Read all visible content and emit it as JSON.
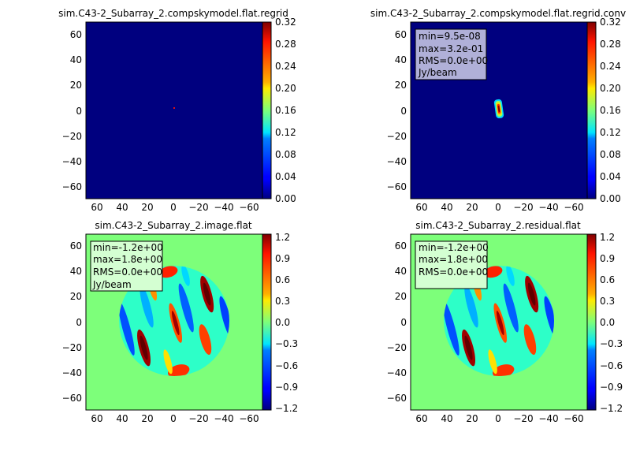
{
  "panels": [
    {
      "title": "sim.C43-2_Subarray_2.compskymodel.flat.regrid",
      "kind": "point",
      "stats": null,
      "colorbar_ticks": [
        "0.00",
        "0.04",
        "0.08",
        "0.12",
        "0.16",
        "0.20",
        "0.24",
        "0.28",
        "0.32"
      ]
    },
    {
      "title": "sim.C43-2_Subarray_2.compskymodel.flat.regrid.conv",
      "kind": "conv",
      "stats": [
        "min=9.5e-08",
        "max=3.2e-01",
        "RMS=0.0e+00",
        "Jy/beam"
      ],
      "colorbar_ticks": [
        "0.00",
        "0.04",
        "0.08",
        "0.12",
        "0.16",
        "0.20",
        "0.24",
        "0.28",
        "0.32"
      ]
    },
    {
      "title": "sim.C43-2_Subarray_2.image.flat",
      "kind": "disk",
      "stats": [
        "min=-1.2e+00",
        "max=1.8e+00",
        "RMS=0.0e+00",
        "Jy/beam"
      ],
      "colorbar_ticks": [
        "−1.2",
        "−0.9",
        "−0.6",
        "−0.3",
        "0.0",
        "0.3",
        "0.6",
        "0.9",
        "1.2"
      ]
    },
    {
      "title": "sim.C43-2_Subarray_2.residual.flat",
      "kind": "disk",
      "stats": [
        "min=-1.2e+00",
        "max=1.8e+00",
        "RMS=0.0e+00"
      ],
      "colorbar_ticks": [
        "−1.2",
        "−0.9",
        "−0.6",
        "−0.3",
        "0.0",
        "0.3",
        "0.6",
        "0.9",
        "1.2"
      ]
    }
  ],
  "axis_ticks": {
    "x": [
      "60",
      "40",
      "20",
      "0",
      "−20",
      "−40",
      "−60"
    ],
    "y": [
      "60",
      "40",
      "20",
      "0",
      "−20",
      "−40",
      "−60"
    ]
  },
  "chart_data": [
    {
      "type": "heatmap",
      "title": "sim.C43-2_Subarray_2.compskymodel.flat.regrid",
      "xlim": [
        70,
        -70
      ],
      "ylim": [
        -70,
        70
      ],
      "xticks": [
        60,
        40,
        20,
        0,
        -20,
        -40,
        -60
      ],
      "yticks": [
        60,
        40,
        20,
        0,
        -20,
        -40,
        -60
      ],
      "colormap": "jet",
      "colorbar_range": [
        0.0,
        0.32
      ],
      "features": [
        {
          "shape": "point",
          "x": 0,
          "y": 2,
          "value": 0.32
        }
      ]
    },
    {
      "type": "heatmap",
      "title": "sim.C43-2_Subarray_2.compskymodel.flat.regrid.conv",
      "xlim": [
        70,
        -70
      ],
      "ylim": [
        -70,
        70
      ],
      "xticks": [
        60,
        40,
        20,
        0,
        -20,
        -40,
        -60
      ],
      "yticks": [
        60,
        40,
        20,
        0,
        -20,
        -40,
        -60
      ],
      "colormap": "jet",
      "colorbar_range": [
        0.0,
        0.32
      ],
      "stats": {
        "min": 9.5e-08,
        "max": 0.32,
        "rms": 0.0,
        "unit": "Jy/beam"
      },
      "features": [
        {
          "shape": "elongated-beam",
          "x": 0,
          "y": 1,
          "length": 14,
          "width": 4,
          "value": 0.32
        }
      ]
    },
    {
      "type": "heatmap",
      "title": "sim.C43-2_Subarray_2.image.flat",
      "xlim": [
        70,
        -70
      ],
      "ylim": [
        -70,
        70
      ],
      "xticks": [
        60,
        40,
        20,
        0,
        -20,
        -40,
        -60
      ],
      "yticks": [
        60,
        40,
        20,
        0,
        -20,
        -40,
        -60
      ],
      "colormap": "jet",
      "colorbar_range": [
        -1.3,
        1.3
      ],
      "stats": {
        "min": -1.2,
        "max": 1.8,
        "rms": 0.0,
        "unit": "Jy/beam"
      },
      "features": [
        {
          "shape": "disk",
          "x": 0,
          "y": 0,
          "radius": 44,
          "pattern": "diagonal-stripes"
        }
      ]
    },
    {
      "type": "heatmap",
      "title": "sim.C43-2_Subarray_2.residual.flat",
      "xlim": [
        70,
        -70
      ],
      "ylim": [
        -70,
        70
      ],
      "xticks": [
        60,
        40,
        20,
        0,
        -20,
        -40,
        -60
      ],
      "yticks": [
        60,
        40,
        20,
        0,
        -20,
        -40,
        -60
      ],
      "colormap": "jet",
      "colorbar_range": [
        -1.3,
        1.3
      ],
      "stats": {
        "min": -1.2,
        "max": 1.8,
        "rms": 0.0
      },
      "features": [
        {
          "shape": "disk",
          "x": 0,
          "y": 0,
          "radius": 44,
          "pattern": "diagonal-stripes"
        }
      ]
    }
  ]
}
